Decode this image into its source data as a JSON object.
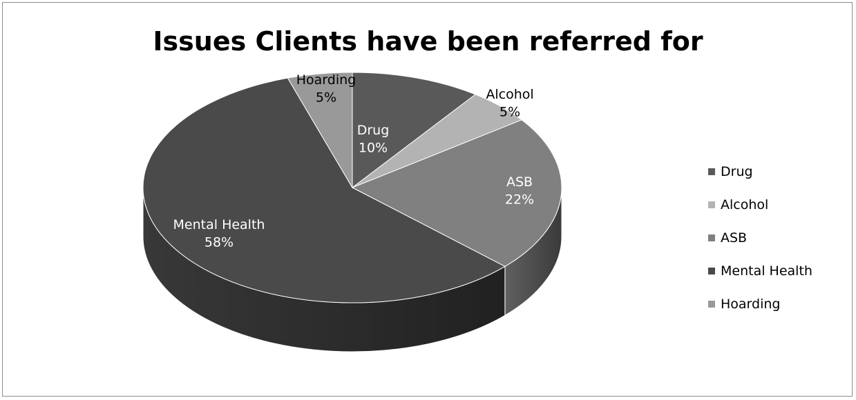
{
  "chart_data": {
    "type": "pie",
    "title": "Issues Clients have been referred for",
    "categories": [
      "Drug",
      "Alcohol",
      "ASB",
      "Mental Health",
      "Hoarding"
    ],
    "values": [
      10,
      5,
      22,
      58,
      5
    ],
    "data_labels": [
      {
        "name": "Drug",
        "value": "10%"
      },
      {
        "name": "Alcohol",
        "value": "5%"
      },
      {
        "name": "ASB",
        "value": "22%"
      },
      {
        "name": "Mental Health",
        "value": "58%"
      },
      {
        "name": "Hoarding",
        "value": "5%"
      }
    ],
    "colors": [
      "#595959",
      "#b3b3b3",
      "#808080",
      "#4a4a4a",
      "#999999"
    ],
    "legend_position": "right",
    "style": "3d-pie"
  }
}
